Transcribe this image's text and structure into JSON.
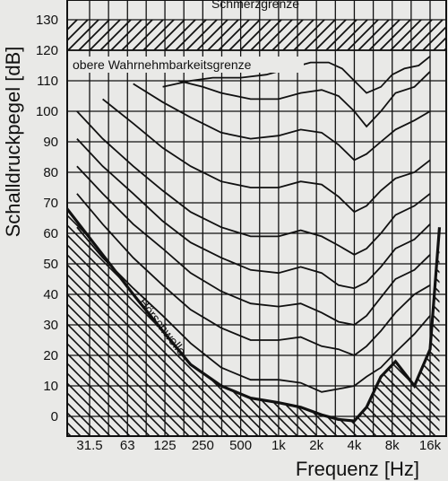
{
  "chart_data": {
    "type": "line",
    "title": "",
    "xlabel": "Frequenz [Hz]",
    "ylabel": "Schalldruckpegel [dB]",
    "x_scale": "log",
    "x_tick_labels": [
      "31.5",
      "63",
      "125",
      "250",
      "500",
      "1k",
      "2k",
      "4k",
      "8k",
      "16k"
    ],
    "x_tick_values": [
      31.5,
      63,
      125,
      250,
      500,
      1000,
      2000,
      4000,
      8000,
      16000
    ],
    "y_tick_labels": [
      "0",
      "10",
      "20",
      "30",
      "40",
      "50",
      "60",
      "70",
      "80",
      "90",
      "100",
      "110",
      "120",
      "130"
    ],
    "ylim": [
      -5,
      130
    ],
    "grid": true,
    "annotations": {
      "pain_threshold": "Schmerzgrenze",
      "upper_limit": "obere Wahrnehmbarkeitsgrenze",
      "hearing_threshold": "Hörschwelle"
    },
    "pain_band": [
      120,
      130
    ],
    "series": [
      {
        "x": [
          20,
          40,
          70,
          120,
          200,
          350,
          600,
          1000,
          1500,
          2200,
          3000,
          4000,
          5000,
          6500,
          8500,
          12000,
          16000,
          19000
        ],
        "y": [
          69,
          53,
          40,
          28,
          17,
          10,
          6,
          4.5,
          3,
          0.5,
          -1,
          -1.5,
          3,
          13,
          18,
          10,
          22,
          62
        ]
      },
      {
        "x": [
          25,
          40,
          70,
          120,
          200,
          350,
          600,
          1000,
          1500,
          2200,
          3000,
          4000,
          5000,
          6500,
          8500,
          12000,
          16000
        ],
        "y": [
          62,
          52,
          42,
          33,
          24,
          16,
          12,
          12,
          11,
          8,
          9,
          10,
          13,
          16,
          21,
          27,
          33
        ]
      },
      {
        "x": [
          25,
          40,
          70,
          120,
          200,
          350,
          600,
          1000,
          1500,
          2200,
          3000,
          4000,
          5000,
          6500,
          8500,
          12000,
          16000
        ],
        "y": [
          73,
          63,
          52,
          43,
          35,
          29,
          25,
          25,
          26,
          23,
          22,
          20,
          23,
          28,
          34,
          40,
          43
        ]
      },
      {
        "x": [
          25,
          40,
          70,
          120,
          200,
          350,
          600,
          1000,
          1500,
          2200,
          3000,
          4000,
          5000,
          6500,
          8500,
          12000,
          16000
        ],
        "y": [
          82,
          73,
          63,
          55,
          47,
          41,
          37,
          36,
          37,
          34,
          31,
          30,
          33,
          39,
          45,
          48,
          53
        ]
      },
      {
        "x": [
          25,
          40,
          70,
          120,
          200,
          350,
          600,
          1000,
          1500,
          2200,
          3000,
          4000,
          5000,
          6500,
          8500,
          12000,
          16000
        ],
        "y": [
          91,
          82,
          73,
          64,
          57,
          52,
          48,
          47,
          49,
          47,
          43,
          42,
          44,
          49,
          55,
          58,
          63
        ]
      },
      {
        "x": [
          25,
          40,
          70,
          120,
          200,
          350,
          600,
          1000,
          1500,
          2200,
          3000,
          4000,
          5000,
          6500,
          8500,
          12000,
          16000
        ],
        "y": [
          100,
          91,
          82,
          74,
          67,
          62,
          59,
          59,
          61,
          59,
          56,
          53,
          55,
          60,
          66,
          69,
          73
        ]
      },
      {
        "x": [
          40,
          70,
          120,
          200,
          350,
          600,
          1000,
          1500,
          2200,
          3000,
          4000,
          5000,
          6500,
          8500,
          12000,
          16000
        ],
        "y": [
          104,
          96,
          88,
          82,
          77,
          75,
          75,
          77,
          76,
          72,
          67,
          69,
          74,
          78,
          80,
          84
        ]
      },
      {
        "x": [
          70,
          120,
          200,
          350,
          600,
          1000,
          1500,
          2200,
          3000,
          4000,
          5000,
          6500,
          8500,
          12000,
          16000
        ],
        "y": [
          109,
          103,
          98,
          93,
          91,
          92,
          94,
          93,
          89,
          84,
          86,
          90,
          94,
          97,
          100
        ]
      },
      {
        "x": [
          160,
          250,
          350,
          600,
          1000,
          1500,
          2200,
          3000,
          4000,
          5000,
          6500,
          8500,
          12000,
          16000
        ],
        "y": [
          110,
          108,
          106,
          104,
          104,
          106,
          107,
          105,
          100,
          95,
          100,
          106,
          108,
          113
        ]
      },
      {
        "x": [
          120,
          200,
          300,
          500,
          800,
          1200,
          1800,
          2500,
          3200,
          4000,
          5000,
          6500,
          8000,
          10000,
          13000,
          16000
        ],
        "y": [
          108,
          110,
          111,
          111,
          112,
          114,
          116,
          116,
          114,
          110,
          106,
          108,
          112,
          114,
          115,
          118
        ]
      }
    ]
  }
}
